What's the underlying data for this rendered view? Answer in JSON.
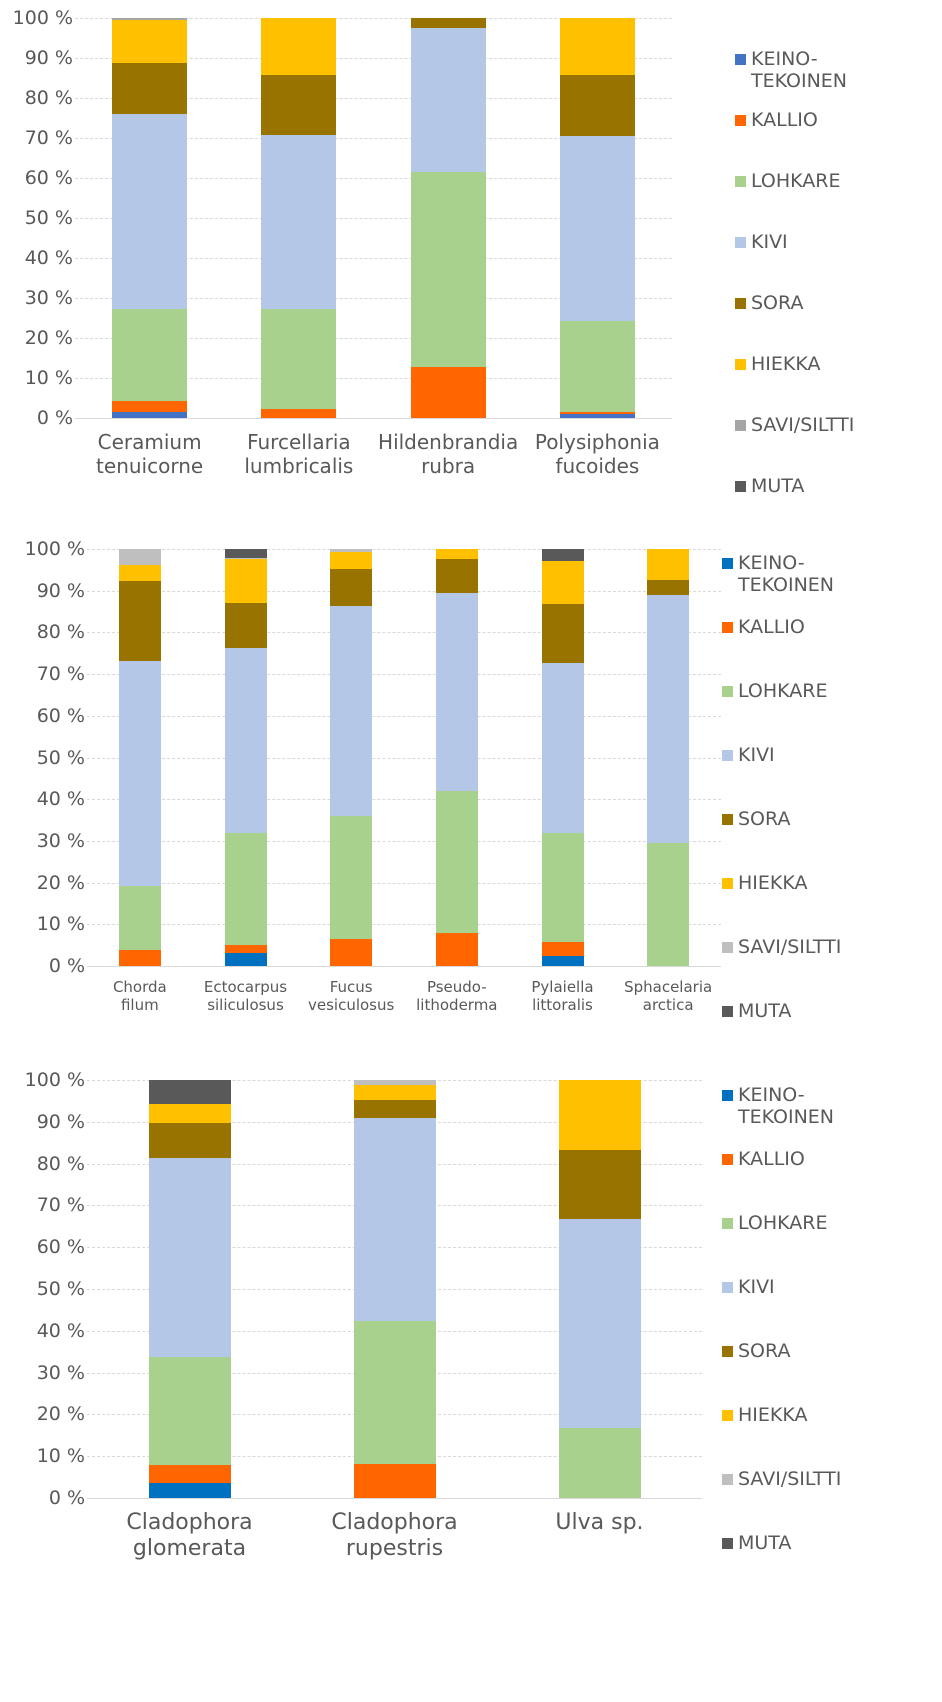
{
  "chart_data": [
    {
      "type": "bar",
      "stacked": true,
      "categories": [
        "Ceramium tenuicorne",
        "Furcellaria lumbricalis",
        "Hildenbrandia rubra",
        "Polysiphonia fucoides"
      ],
      "ylim": [
        0,
        100
      ],
      "yticks": [
        {
          "value": 0,
          "label": "0 %"
        },
        {
          "value": 10,
          "label": "10 %"
        },
        {
          "value": 20,
          "label": "20 %"
        },
        {
          "value": 30,
          "label": "30 %"
        },
        {
          "value": 40,
          "label": "40 %"
        },
        {
          "value": 50,
          "label": "50 %"
        },
        {
          "value": 60,
          "label": "60 %"
        },
        {
          "value": 70,
          "label": "70 %"
        },
        {
          "value": 80,
          "label": "80 %"
        },
        {
          "value": 90,
          "label": "90 %"
        },
        {
          "value": 100,
          "label": "100 %"
        }
      ],
      "grid": true,
      "series": [
        {
          "name": "KEINO-TEKOINEN",
          "color": "#4472c4",
          "values": [
            1.5,
            0,
            0,
            0.9
          ]
        },
        {
          "name": "KALLIO",
          "color": "#ff6600",
          "values": [
            2.8,
            2.2,
            12.8,
            0.6
          ]
        },
        {
          "name": "LOHKARE",
          "color": "#a9d18e",
          "values": [
            23,
            25,
            48.8,
            22.7
          ]
        },
        {
          "name": "KIVI",
          "color": "#b4c7e7",
          "values": [
            48.7,
            43.5,
            36,
            46.4
          ]
        },
        {
          "name": "SORA",
          "color": "#997300",
          "values": [
            12.7,
            15.1,
            2.4,
            15.2
          ]
        },
        {
          "name": "HIEKKA",
          "color": "#ffc000",
          "values": [
            10.8,
            14.2,
            0,
            14.2
          ]
        },
        {
          "name": "SAVI/SILTTI",
          "color": "#a5a5a5",
          "values": [
            0.5,
            0,
            0,
            0
          ]
        },
        {
          "name": "MUTA",
          "color": "#595959",
          "values": [
            0,
            0,
            0,
            0
          ]
        }
      ]
    },
    {
      "type": "bar",
      "stacked": true,
      "categories": [
        "Chorda filum",
        "Ectocarpus siliculosus",
        "Fucus vesiculosus",
        "Pseudo-lithoderma",
        "Pylaiella littoralis",
        "Sphacelaria arctica"
      ],
      "ylim": [
        0,
        100
      ],
      "yticks": [
        {
          "value": 0,
          "label": "0 %"
        },
        {
          "value": 10,
          "label": "10 %"
        },
        {
          "value": 20,
          "label": "20 %"
        },
        {
          "value": 30,
          "label": "30 %"
        },
        {
          "value": 40,
          "label": "40 %"
        },
        {
          "value": 50,
          "label": "50 %"
        },
        {
          "value": 60,
          "label": "60 %"
        },
        {
          "value": 70,
          "label": "70 %"
        },
        {
          "value": 80,
          "label": "80 %"
        },
        {
          "value": 90,
          "label": "90 %"
        },
        {
          "value": 100,
          "label": "100 %"
        }
      ],
      "grid": true,
      "series": [
        {
          "name": "KEINO-TEKOINEN",
          "color": "#0070c0",
          "values": [
            0,
            3.2,
            0,
            0,
            2.3,
            0
          ]
        },
        {
          "name": "KALLIO",
          "color": "#ff6600",
          "values": [
            3.8,
            1.8,
            6.5,
            8,
            3.4,
            0
          ]
        },
        {
          "name": "LOHKARE",
          "color": "#a9d18e",
          "values": [
            15.4,
            26.8,
            29.4,
            34,
            26.2,
            29.6
          ]
        },
        {
          "name": "KIVI",
          "color": "#b4c7e7",
          "values": [
            53.9,
            44.4,
            50.5,
            47.5,
            40.8,
            59.3
          ]
        },
        {
          "name": "SORA",
          "color": "#997300",
          "values": [
            19.2,
            10.9,
            8.7,
            8,
            14,
            3.7
          ]
        },
        {
          "name": "HIEKKA",
          "color": "#ffc000",
          "values": [
            3.9,
            10.5,
            4.1,
            2.5,
            10.5,
            7.4
          ]
        },
        {
          "name": "SAVI/SILTTI",
          "color": "#bfbfbf",
          "values": [
            3.8,
            0.2,
            0.8,
            0,
            0,
            0
          ]
        },
        {
          "name": "MUTA",
          "color": "#595959",
          "values": [
            0,
            2.2,
            0,
            0,
            2.8,
            0
          ]
        }
      ]
    },
    {
      "type": "bar",
      "stacked": true,
      "categories": [
        "Cladophora glomerata",
        "Cladophora rupestris",
        "Ulva sp."
      ],
      "ylim": [
        0,
        100
      ],
      "yticks": [
        {
          "value": 0,
          "label": "0 %"
        },
        {
          "value": 10,
          "label": "10 %"
        },
        {
          "value": 20,
          "label": "20 %"
        },
        {
          "value": 30,
          "label": "30 %"
        },
        {
          "value": 40,
          "label": "40 %"
        },
        {
          "value": 50,
          "label": "50 %"
        },
        {
          "value": 60,
          "label": "60 %"
        },
        {
          "value": 70,
          "label": "70 %"
        },
        {
          "value": 80,
          "label": "80 %"
        },
        {
          "value": 90,
          "label": "90 %"
        },
        {
          "value": 100,
          "label": "100 %"
        }
      ],
      "grid": true,
      "series": [
        {
          "name": "KEINO-TEKOINEN",
          "color": "#0070c0",
          "values": [
            3.7,
            0,
            0
          ]
        },
        {
          "name": "KALLIO",
          "color": "#ff6600",
          "values": [
            4.1,
            8.1,
            0
          ]
        },
        {
          "name": "LOHKARE",
          "color": "#a9d18e",
          "values": [
            26,
            34.2,
            16.7
          ]
        },
        {
          "name": "KIVI",
          "color": "#b4c7e7",
          "values": [
            47.6,
            48.6,
            50
          ]
        },
        {
          "name": "SORA",
          "color": "#997300",
          "values": [
            8.4,
            4.4,
            16.6
          ]
        },
        {
          "name": "HIEKKA",
          "color": "#ffc000",
          "values": [
            4.5,
            3.5,
            16.7
          ]
        },
        {
          "name": "SAVI/SILTTI",
          "color": "#bfbfbf",
          "values": [
            0,
            1.2,
            0
          ]
        },
        {
          "name": "MUTA",
          "color": "#595959",
          "values": [
            5.7,
            0,
            0
          ]
        }
      ]
    }
  ]
}
